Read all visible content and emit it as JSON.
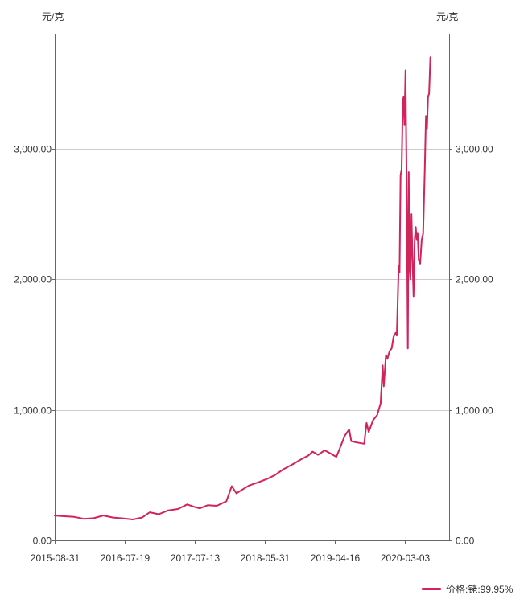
{
  "chart_data": {
    "type": "line",
    "title": "",
    "y_unit_left": "元/克",
    "y_unit_right": "元/克",
    "x_tick_labels": [
      "2015-08-31",
      "2016-07-19",
      "2017-07-13",
      "2018-05-31",
      "2019-04-16",
      "2020-03-03"
    ],
    "y_ticks": [
      0,
      1000,
      2000,
      3000
    ],
    "y_tick_labels": [
      "0.00",
      "1,000.00",
      "2,000.00",
      "3,000.00"
    ],
    "ylim": [
      0,
      3880
    ],
    "grid": "horizontal",
    "legend_position": "bottom-right",
    "colors": {
      "series": "#d0245a",
      "grid": "#cccccc",
      "axis": "#666666"
    },
    "series": [
      {
        "name": "价格:铑:99.95%",
        "points": [
          [
            "2015-08-31",
            190
          ],
          [
            "2015-10-15",
            185
          ],
          [
            "2015-12-01",
            180
          ],
          [
            "2016-01-15",
            165
          ],
          [
            "2016-03-01",
            170
          ],
          [
            "2016-04-15",
            190
          ],
          [
            "2016-06-01",
            175
          ],
          [
            "2016-07-19",
            168
          ],
          [
            "2016-09-01",
            160
          ],
          [
            "2016-10-15",
            175
          ],
          [
            "2016-11-20",
            215
          ],
          [
            "2017-01-01",
            200
          ],
          [
            "2017-02-15",
            230
          ],
          [
            "2017-04-01",
            240
          ],
          [
            "2017-05-15",
            275
          ],
          [
            "2017-06-20",
            255
          ],
          [
            "2017-07-13",
            245
          ],
          [
            "2017-08-20",
            270
          ],
          [
            "2017-10-01",
            265
          ],
          [
            "2017-11-15",
            300
          ],
          [
            "2017-12-10",
            415
          ],
          [
            "2018-01-01",
            360
          ],
          [
            "2018-01-20",
            380
          ],
          [
            "2018-03-01",
            420
          ],
          [
            "2018-04-15",
            445
          ],
          [
            "2018-05-31",
            475
          ],
          [
            "2018-07-01",
            500
          ],
          [
            "2018-08-10",
            545
          ],
          [
            "2018-09-20",
            580
          ],
          [
            "2018-11-01",
            620
          ],
          [
            "2018-12-05",
            650
          ],
          [
            "2018-12-25",
            680
          ],
          [
            "2019-01-20",
            655
          ],
          [
            "2019-02-20",
            690
          ],
          [
            "2019-03-15",
            670
          ],
          [
            "2019-04-16",
            640
          ],
          [
            "2019-05-01",
            700
          ],
          [
            "2019-05-25",
            800
          ],
          [
            "2019-06-15",
            850
          ],
          [
            "2019-06-25",
            760
          ],
          [
            "2019-07-20",
            750
          ],
          [
            "2019-08-25",
            740
          ],
          [
            "2019-09-05",
            900
          ],
          [
            "2019-09-15",
            830
          ],
          [
            "2019-10-05",
            920
          ],
          [
            "2019-10-25",
            960
          ],
          [
            "2019-11-10",
            1050
          ],
          [
            "2019-11-20",
            1340
          ],
          [
            "2019-11-25",
            1180
          ],
          [
            "2019-12-05",
            1420
          ],
          [
            "2019-12-12",
            1390
          ],
          [
            "2019-12-22",
            1450
          ],
          [
            "2020-01-01",
            1470
          ],
          [
            "2020-01-10",
            1560
          ],
          [
            "2020-01-20",
            1590
          ],
          [
            "2020-01-25",
            1570
          ],
          [
            "2020-02-03",
            2100
          ],
          [
            "2020-02-07",
            2050
          ],
          [
            "2020-02-12",
            2800
          ],
          [
            "2020-02-17",
            2840
          ],
          [
            "2020-02-22",
            3350
          ],
          [
            "2020-02-26",
            3400
          ],
          [
            "2020-03-01",
            3180
          ],
          [
            "2020-03-06",
            3600
          ],
          [
            "2020-03-12",
            2600
          ],
          [
            "2020-03-17",
            1470
          ],
          [
            "2020-03-21",
            2820
          ],
          [
            "2020-03-25",
            2100
          ],
          [
            "2020-03-29",
            2000
          ],
          [
            "2020-04-03",
            2500
          ],
          [
            "2020-04-08",
            2150
          ],
          [
            "2020-04-13",
            1870
          ],
          [
            "2020-04-18",
            2300
          ],
          [
            "2020-04-23",
            2400
          ],
          [
            "2020-04-28",
            2300
          ],
          [
            "2020-05-02",
            2350
          ],
          [
            "2020-05-07",
            2150
          ],
          [
            "2020-05-14",
            2120
          ],
          [
            "2020-05-21",
            2300
          ],
          [
            "2020-05-28",
            2350
          ],
          [
            "2020-06-05",
            2850
          ],
          [
            "2020-06-10",
            3250
          ],
          [
            "2020-06-15",
            3150
          ],
          [
            "2020-06-20",
            3400
          ],
          [
            "2020-06-25",
            3420
          ],
          [
            "2020-07-01",
            3700
          ]
        ]
      }
    ]
  }
}
